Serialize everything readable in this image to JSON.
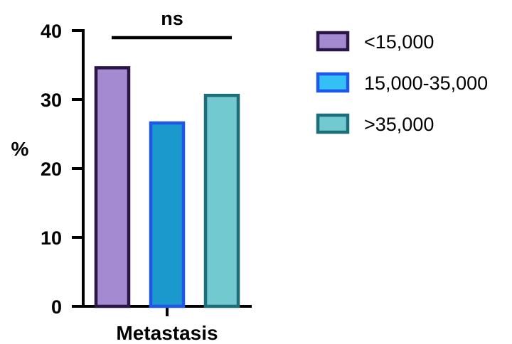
{
  "chart_data": {
    "type": "bar",
    "categories": [
      "Metastasis"
    ],
    "series": [
      {
        "name": "<15,000",
        "values": [
          34.6
        ],
        "fill": "#a48bd1",
        "stroke": "#2b1648"
      },
      {
        "name": "15,000-35,000",
        "values": [
          26.6
        ],
        "fill": "#1b99cc",
        "stroke": "#1f57e8"
      },
      {
        "name": ">35,000",
        "values": [
          30.6
        ],
        "fill": "#72c9cf",
        "stroke": "#1d6e7b"
      }
    ],
    "legend_swatches": [
      {
        "fill": "#a48bd1",
        "stroke": "#2b1648"
      },
      {
        "fill": "#33c0f5",
        "stroke": "#1f57e8"
      },
      {
        "fill": "#72c9cf",
        "stroke": "#1d6e7b"
      }
    ],
    "ylabel": "%",
    "xlabel": "",
    "ylim": [
      0,
      40
    ],
    "yticks": [
      "0",
      "10",
      "20",
      "30",
      "40"
    ],
    "annotation": "ns",
    "grid": false,
    "legend_position": "right"
  }
}
